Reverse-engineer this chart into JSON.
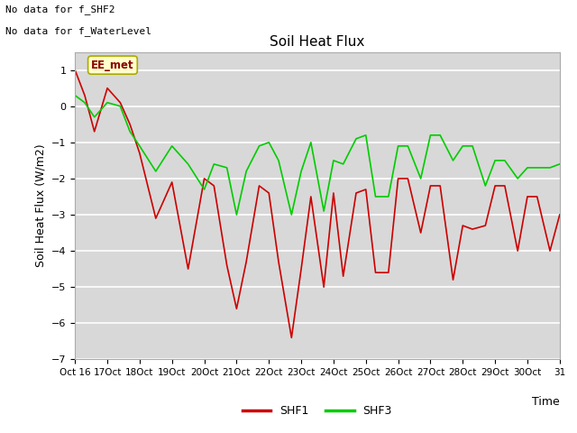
{
  "title": "Soil Heat Flux",
  "ylabel": "Soil Heat Flux (W/m2)",
  "xlabel": "Time",
  "xlim": [
    0,
    15
  ],
  "ylim": [
    -7.0,
    1.5
  ],
  "yticks": [
    -7.0,
    -6.0,
    -5.0,
    -4.0,
    -3.0,
    -2.0,
    -1.0,
    0.0,
    1.0
  ],
  "xtick_labels": [
    "Oct 16",
    "17Oct",
    "18Oct",
    "19Oct",
    "20Oct",
    "21Oct",
    "22Oct",
    "23Oct",
    "24Oct",
    "25Oct",
    "26Oct",
    "27Oct",
    "28Oct",
    "29Oct",
    "30Oct",
    "31"
  ],
  "annotations_top": [
    "No data for f_SHF2",
    "No data for f_WaterLevel"
  ],
  "ee_met_label": "EE_met",
  "plot_bg_color": "#d8d8d8",
  "fig_bg_color": "#ffffff",
  "shf1_color": "#cc0000",
  "shf3_color": "#00cc00",
  "shf1_x": [
    0,
    0.3,
    0.6,
    1.0,
    1.4,
    1.7,
    2.0,
    2.5,
    3.0,
    3.5,
    4.0,
    4.3,
    4.7,
    5.0,
    5.3,
    5.7,
    6.0,
    6.3,
    6.7,
    7.0,
    7.3,
    7.7,
    8.0,
    8.3,
    8.7,
    9.0,
    9.3,
    9.7,
    10.0,
    10.3,
    10.7,
    11.0,
    11.3,
    11.7,
    12.0,
    12.3,
    12.7,
    13.0,
    13.3,
    13.7,
    14.0,
    14.3,
    14.7,
    15.0
  ],
  "shf1_y": [
    1.0,
    0.3,
    -0.7,
    0.5,
    0.1,
    -0.5,
    -1.3,
    -3.1,
    -2.1,
    -4.5,
    -2.0,
    -2.2,
    -4.4,
    -5.6,
    -4.3,
    -2.2,
    -2.4,
    -4.3,
    -6.4,
    -4.5,
    -2.5,
    -5.0,
    -2.4,
    -4.7,
    -2.4,
    -2.3,
    -4.6,
    -4.6,
    -2.0,
    -2.0,
    -3.5,
    -2.2,
    -2.2,
    -4.8,
    -3.3,
    -3.4,
    -3.3,
    -2.2,
    -2.2,
    -4.0,
    -2.5,
    -2.5,
    -4.0,
    -3.0
  ],
  "shf3_x": [
    0,
    0.3,
    0.6,
    1.0,
    1.4,
    1.7,
    2.0,
    2.5,
    3.0,
    3.5,
    4.0,
    4.3,
    4.7,
    5.0,
    5.3,
    5.7,
    6.0,
    6.3,
    6.7,
    7.0,
    7.3,
    7.7,
    8.0,
    8.3,
    8.7,
    9.0,
    9.3,
    9.7,
    10.0,
    10.3,
    10.7,
    11.0,
    11.3,
    11.7,
    12.0,
    12.3,
    12.7,
    13.0,
    13.3,
    13.7,
    14.0,
    14.3,
    14.7,
    15.0
  ],
  "shf3_y": [
    0.3,
    0.1,
    -0.3,
    0.1,
    0.0,
    -0.7,
    -1.1,
    -1.8,
    -1.1,
    -1.6,
    -2.3,
    -1.6,
    -1.7,
    -3.0,
    -1.8,
    -1.1,
    -1.0,
    -1.5,
    -3.0,
    -1.8,
    -1.0,
    -2.9,
    -1.5,
    -1.6,
    -0.9,
    -0.8,
    -2.5,
    -2.5,
    -1.1,
    -1.1,
    -2.0,
    -0.8,
    -0.8,
    -1.5,
    -1.1,
    -1.1,
    -2.2,
    -1.5,
    -1.5,
    -2.0,
    -1.7,
    -1.7,
    -1.7,
    -1.6
  ]
}
